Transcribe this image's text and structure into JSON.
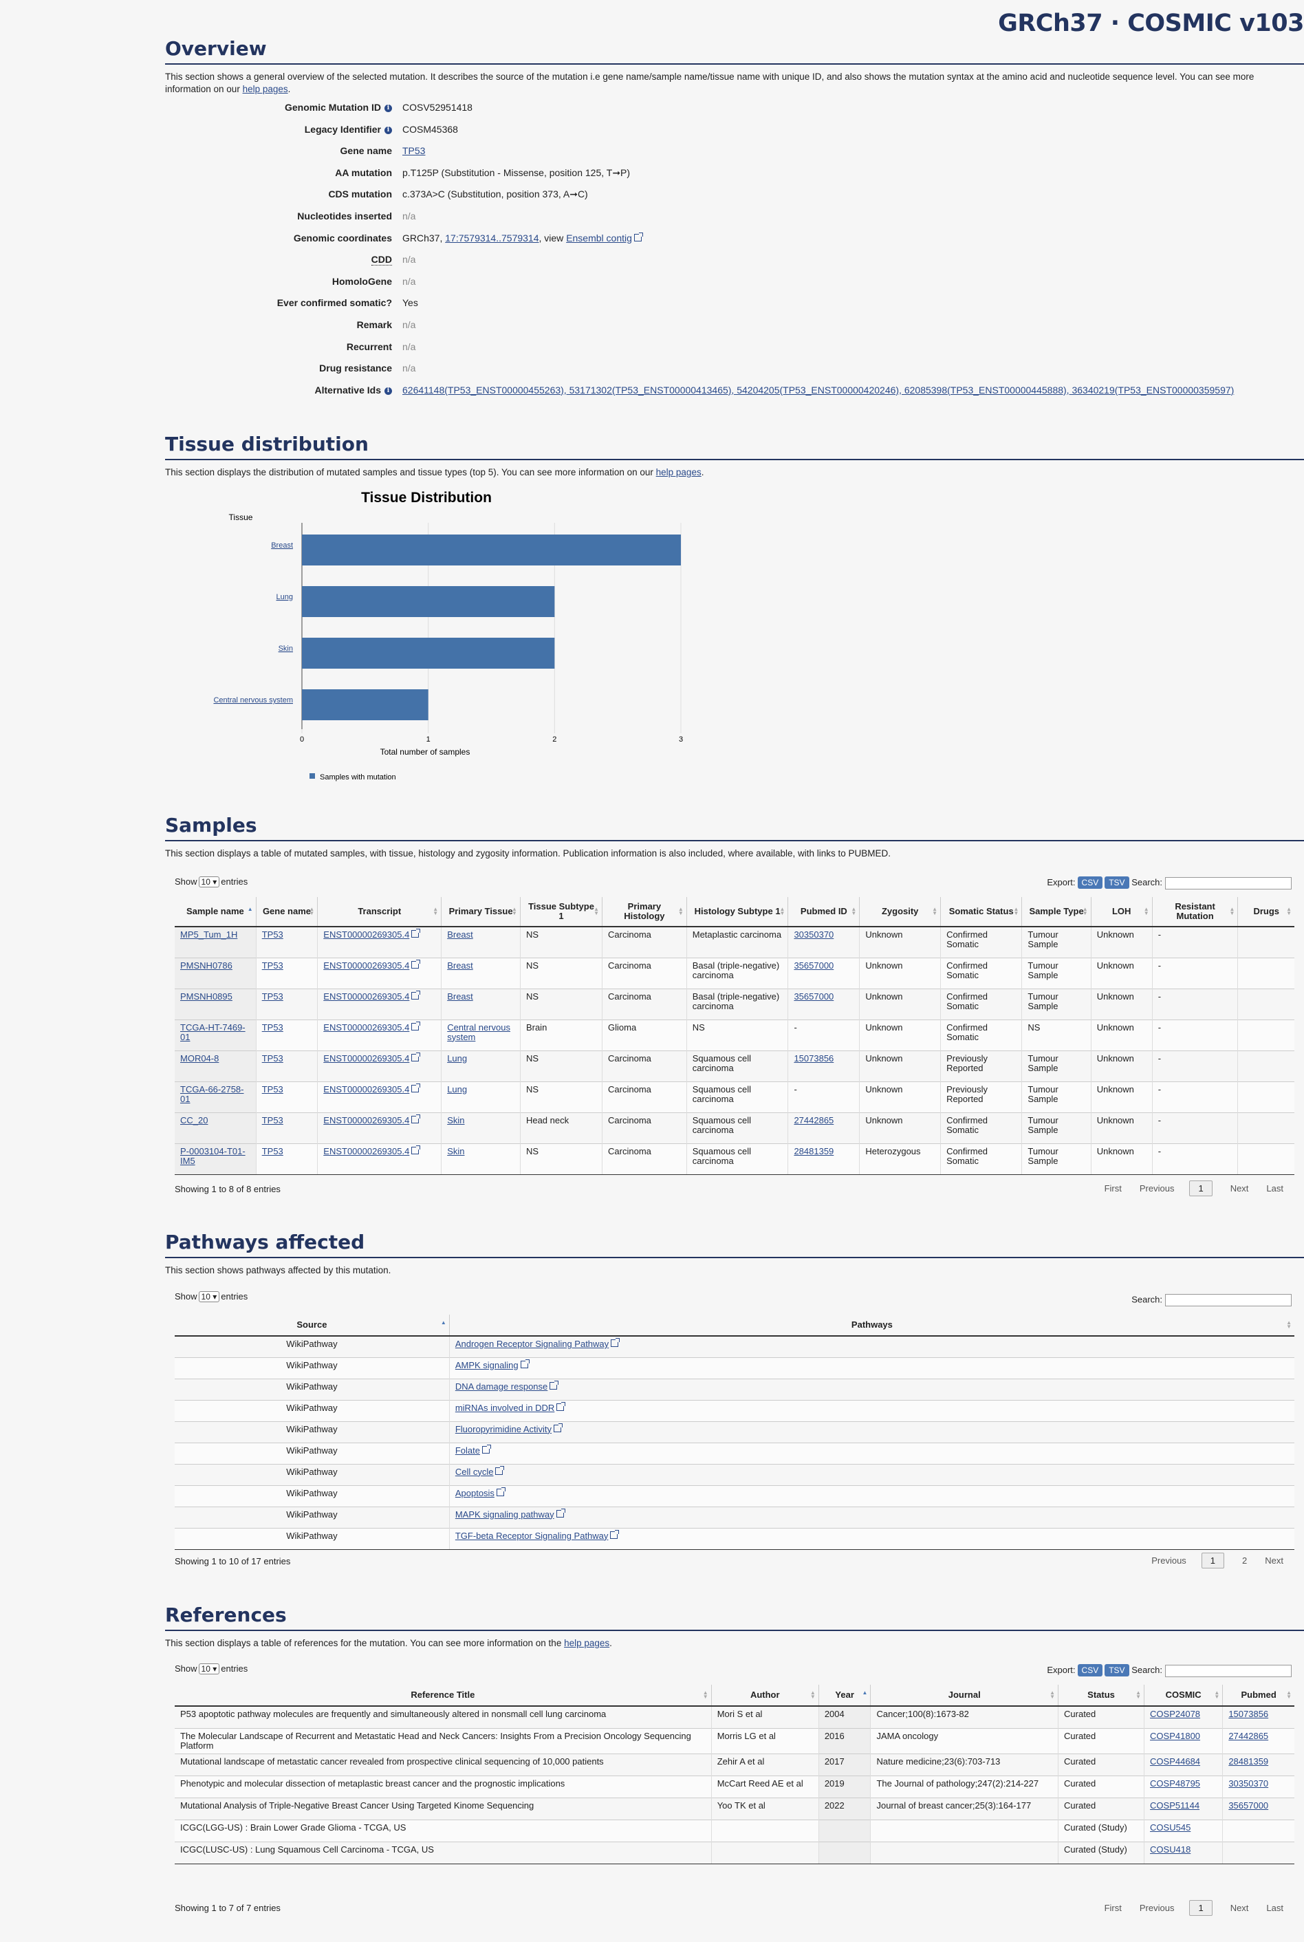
{
  "brand": "GRCh37 · COSMIC v103",
  "overview": {
    "title": "Overview",
    "desc": "This section shows a general overview of the selected mutation. It describes the source of the mutation i.e gene name/sample name/tissue name with unique ID, and also shows the mutation syntax at the amino acid and nucleotide sequence level. You can see more information on our ",
    "desc_link": "help pages",
    "rows": [
      {
        "label": "Genomic Mutation ID",
        "value": "COSV52951418"
      },
      {
        "label": "Legacy Identifier",
        "value": "COSM45368"
      },
      {
        "label": "Gene name",
        "value": "TP53"
      },
      {
        "label": "AA mutation",
        "value": "p.T125P (Substitution - Missense, position 125, T➞P)"
      },
      {
        "label": "CDS mutation",
        "value": "c.373A>C (Substitution, position 373, A➞C)"
      },
      {
        "label": "Nucleotides inserted",
        "value": "n/a"
      },
      {
        "label": "Genomic coordinates",
        "value_pre": "GRCh37, ",
        "value_link": "17:7579314..7579314",
        "value_mid": ", view ",
        "value_link2": "Ensembl contig"
      },
      {
        "label": "CDD",
        "value": "n/a"
      },
      {
        "label": "HomoloGene",
        "value": "n/a"
      },
      {
        "label": "Ever confirmed somatic?",
        "value": "Yes"
      },
      {
        "label": "Remark",
        "value": "n/a"
      },
      {
        "label": "Recurrent",
        "value": "n/a"
      },
      {
        "label": "Drug resistance",
        "value": "n/a"
      },
      {
        "label": "Alternative Ids",
        "value": "62641148(TP53_ENST00000455263), 53171302(TP53_ENST00000413465), 54204205(TP53_ENST00000420246), 62085398(TP53_ENST00000445888), 36340219(TP53_ENST00000359597)"
      }
    ]
  },
  "tissue": {
    "title": "Tissue distribution",
    "desc": "This section displays the distribution of mutated samples and tissue types (top 5). You can see more information on our ",
    "desc_link": "help pages"
  },
  "chart_data": {
    "type": "bar",
    "orientation": "horizontal",
    "title": "Tissue Distribution",
    "ylabel": "Tissue",
    "xlabel": "Total number of samples",
    "categories": [
      "Breast",
      "Lung",
      "Skin",
      "Central nervous system"
    ],
    "values": [
      3,
      2,
      2,
      1
    ],
    "xlim": [
      0,
      3
    ],
    "xticks": [
      "0",
      "1",
      "2",
      "3"
    ],
    "series": [
      {
        "name": "Samples with mutation",
        "values": [
          3,
          2,
          2,
          1
        ]
      }
    ],
    "color": "#4472a8",
    "legend": "bottom-left",
    "grid": true
  },
  "samples": {
    "title": "Samples",
    "desc": "This section displays a table of mutated samples, with tissue, histology and zygosity information. Publication information is also included, where available, with links to PUBMED.",
    "show": "Show",
    "entries_value": "10",
    "entries": "entries",
    "export": "Export:",
    "csv": "CSV",
    "tsv": "TSV",
    "search": "Search:",
    "columns": [
      "Sample name",
      "Gene name",
      "Transcript",
      "Primary Tissue",
      "Tissue Subtype 1",
      "Primary Histology",
      "Histology Subtype 1",
      "Pubmed ID",
      "Zygosity",
      "Somatic Status",
      "Sample Type",
      "LOH",
      "Resistant Mutation",
      "Drugs"
    ],
    "rows": [
      [
        "MP5_Tum_1H",
        "TP53",
        "ENST00000269305.4",
        "Breast",
        "NS",
        "Carcinoma",
        "Metaplastic carcinoma",
        "30350370",
        "Unknown",
        "Confirmed Somatic",
        "Tumour Sample",
        "Unknown",
        "-",
        ""
      ],
      [
        "PMSNH0786",
        "TP53",
        "ENST00000269305.4",
        "Breast",
        "NS",
        "Carcinoma",
        "Basal (triple-negative) carcinoma",
        "35657000",
        "Unknown",
        "Confirmed Somatic",
        "Tumour Sample",
        "Unknown",
        "-",
        ""
      ],
      [
        "PMSNH0895",
        "TP53",
        "ENST00000269305.4",
        "Breast",
        "NS",
        "Carcinoma",
        "Basal (triple-negative) carcinoma",
        "35657000",
        "Unknown",
        "Confirmed Somatic",
        "Tumour Sample",
        "Unknown",
        "-",
        ""
      ],
      [
        "TCGA-HT-7469-01",
        "TP53",
        "ENST00000269305.4",
        "Central nervous system",
        "Brain",
        "Glioma",
        "NS",
        "-",
        "Unknown",
        "Confirmed Somatic",
        "NS",
        "Unknown",
        "-",
        ""
      ],
      [
        "MOR04-8",
        "TP53",
        "ENST00000269305.4",
        "Lung",
        "NS",
        "Carcinoma",
        "Squamous cell carcinoma",
        "15073856",
        "Unknown",
        "Previously Reported",
        "Tumour Sample",
        "Unknown",
        "-",
        ""
      ],
      [
        "TCGA-66-2758-01",
        "TP53",
        "ENST00000269305.4",
        "Lung",
        "NS",
        "Carcinoma",
        "Squamous cell carcinoma",
        "-",
        "Unknown",
        "Previously Reported",
        "Tumour Sample",
        "Unknown",
        "-",
        ""
      ],
      [
        "CC_20",
        "TP53",
        "ENST00000269305.4",
        "Skin",
        "Head neck",
        "Carcinoma",
        "Squamous cell carcinoma",
        "27442865",
        "Unknown",
        "Confirmed Somatic",
        "Tumour Sample",
        "Unknown",
        "-",
        ""
      ],
      [
        "P-0003104-T01-IM5",
        "TP53",
        "ENST00000269305.4",
        "Skin",
        "NS",
        "Carcinoma",
        "Squamous cell carcinoma",
        "28481359",
        "Heterozygous",
        "Confirmed Somatic",
        "Tumour Sample",
        "Unknown",
        "-",
        ""
      ]
    ],
    "info": "Showing 1 to 8 of 8 entries",
    "pager": {
      "first": "First",
      "previous": "Previous",
      "current": "1",
      "next": "Next",
      "last": "Last"
    }
  },
  "pathways": {
    "title": "Pathways affected",
    "desc": "This section shows pathways affected by this mutation.",
    "show": "Show",
    "entries_value": "10",
    "entries": "entries",
    "search": "Search:",
    "columns": [
      "Source",
      "Pathways"
    ],
    "rows": [
      [
        "WikiPathway",
        "Androgen Receptor Signaling Pathway"
      ],
      [
        "WikiPathway",
        "AMPK signaling"
      ],
      [
        "WikiPathway",
        "DNA damage response"
      ],
      [
        "WikiPathway",
        "miRNAs involved in DDR"
      ],
      [
        "WikiPathway",
        "Fluoropyrimidine Activity"
      ],
      [
        "WikiPathway",
        "Folate"
      ],
      [
        "WikiPathway",
        "Cell cycle"
      ],
      [
        "WikiPathway",
        "Apoptosis"
      ],
      [
        "WikiPathway",
        "MAPK signaling pathway"
      ],
      [
        "WikiPathway",
        "TGF-beta Receptor Signaling Pathway"
      ]
    ],
    "info": "Showing 1 to 10 of 17 entries",
    "pager": {
      "previous": "Previous",
      "current": "1",
      "page2": "2",
      "next": "Next"
    }
  },
  "references": {
    "title": "References",
    "desc": "This section displays a table of references for the mutation. You can see more information on the ",
    "desc_link": "help pages",
    "show": "Show",
    "entries_value": "10",
    "entries": "entries",
    "export": "Export:",
    "csv": "CSV",
    "tsv": "TSV",
    "search": "Search:",
    "columns": [
      "Reference Title",
      "Author",
      "Year",
      "Journal",
      "Status",
      "COSMIC",
      "Pubmed"
    ],
    "rows": [
      [
        "P53 apoptotic pathway molecules are frequently and simultaneously altered in nonsmall cell lung carcinoma",
        "Mori S et al",
        "2004",
        "Cancer;100(8):1673-82",
        "Curated",
        "COSP24078",
        "15073856"
      ],
      [
        "The Molecular Landscape of Recurrent and Metastatic Head and Neck Cancers: Insights From a Precision Oncology Sequencing Platform",
        "Morris LG et al",
        "2016",
        "JAMA oncology",
        "Curated",
        "COSP41800",
        "27442865"
      ],
      [
        "Mutational landscape of metastatic cancer revealed from prospective clinical sequencing of 10,000 patients",
        "Zehir A et al",
        "2017",
        "Nature medicine;23(6):703-713",
        "Curated",
        "COSP44684",
        "28481359"
      ],
      [
        "Phenotypic and molecular dissection of metaplastic breast cancer and the prognostic implications",
        "McCart Reed AE et al",
        "2019",
        "The Journal of pathology;247(2):214-227",
        "Curated",
        "COSP48795",
        "30350370"
      ],
      [
        "Mutational Analysis of Triple-Negative Breast Cancer Using Targeted Kinome Sequencing",
        "Yoo TK et al",
        "2022",
        "Journal of breast cancer;25(3):164-177",
        "Curated",
        "COSP51144",
        "35657000"
      ],
      [
        "ICGC(LGG-US) : Brain Lower Grade Glioma - TCGA, US",
        "",
        "",
        "",
        "Curated (Study)",
        "COSU545",
        ""
      ],
      [
        "ICGC(LUSC-US) : Lung Squamous Cell Carcinoma - TCGA, US",
        "",
        "",
        "",
        "Curated (Study)",
        "COSU418",
        ""
      ]
    ],
    "info": "Showing 1 to 7 of 7 entries",
    "pager": {
      "first": "First",
      "previous": "Previous",
      "current": "1",
      "next": "Next",
      "last": "Last"
    }
  }
}
